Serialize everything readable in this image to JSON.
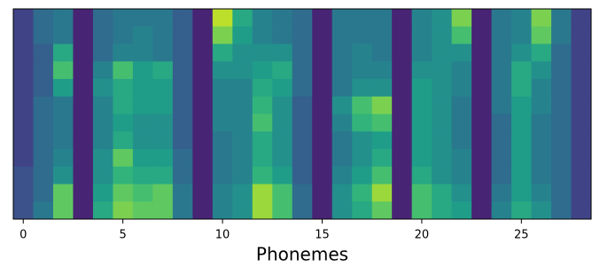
{
  "chart_data": {
    "type": "heatmap",
    "xlabel": "Phonemes",
    "colormap": "viridis",
    "zlim": [
      0,
      1
    ],
    "xlim": [
      -0.5,
      28.5
    ],
    "xticks": [
      0,
      5,
      10,
      15,
      20,
      25
    ],
    "x": [
      0,
      1,
      2,
      3,
      4,
      5,
      6,
      7,
      8,
      9,
      10,
      11,
      12,
      13,
      14,
      15,
      16,
      17,
      18,
      19,
      20,
      21,
      22,
      23,
      24,
      25,
      26,
      27,
      28
    ],
    "z": [
      [
        0.2,
        0.35,
        0.4,
        0.1,
        0.35,
        0.4,
        0.4,
        0.4,
        0.3,
        0.1,
        0.9,
        0.6,
        0.45,
        0.4,
        0.35,
        0.1,
        0.4,
        0.4,
        0.4,
        0.1,
        0.45,
        0.5,
        0.8,
        0.1,
        0.4,
        0.45,
        0.8,
        0.4,
        0.2
      ],
      [
        0.2,
        0.35,
        0.4,
        0.1,
        0.35,
        0.4,
        0.45,
        0.4,
        0.3,
        0.1,
        0.8,
        0.55,
        0.45,
        0.4,
        0.35,
        0.1,
        0.4,
        0.4,
        0.4,
        0.1,
        0.45,
        0.5,
        0.7,
        0.1,
        0.4,
        0.45,
        0.75,
        0.4,
        0.2
      ],
      [
        0.2,
        0.3,
        0.6,
        0.1,
        0.35,
        0.45,
        0.45,
        0.4,
        0.3,
        0.1,
        0.6,
        0.5,
        0.5,
        0.5,
        0.35,
        0.1,
        0.4,
        0.45,
        0.4,
        0.1,
        0.45,
        0.5,
        0.5,
        0.1,
        0.4,
        0.5,
        0.6,
        0.35,
        0.2
      ],
      [
        0.2,
        0.3,
        0.7,
        0.1,
        0.45,
        0.7,
        0.55,
        0.6,
        0.3,
        0.1,
        0.5,
        0.5,
        0.55,
        0.6,
        0.35,
        0.1,
        0.4,
        0.45,
        0.45,
        0.1,
        0.5,
        0.5,
        0.45,
        0.1,
        0.4,
        0.6,
        0.5,
        0.35,
        0.2
      ],
      [
        0.2,
        0.3,
        0.55,
        0.1,
        0.5,
        0.6,
        0.55,
        0.55,
        0.3,
        0.1,
        0.45,
        0.45,
        0.6,
        0.55,
        0.35,
        0.1,
        0.4,
        0.5,
        0.5,
        0.1,
        0.55,
        0.5,
        0.45,
        0.1,
        0.4,
        0.6,
        0.45,
        0.35,
        0.2
      ],
      [
        0.2,
        0.35,
        0.4,
        0.1,
        0.45,
        0.6,
        0.55,
        0.55,
        0.3,
        0.1,
        0.45,
        0.45,
        0.65,
        0.5,
        0.3,
        0.1,
        0.5,
        0.7,
        0.8,
        0.1,
        0.55,
        0.5,
        0.4,
        0.1,
        0.4,
        0.55,
        0.45,
        0.35,
        0.2
      ],
      [
        0.2,
        0.35,
        0.4,
        0.1,
        0.45,
        0.55,
        0.5,
        0.5,
        0.3,
        0.1,
        0.45,
        0.45,
        0.7,
        0.5,
        0.3,
        0.1,
        0.45,
        0.65,
        0.7,
        0.1,
        0.55,
        0.5,
        0.4,
        0.1,
        0.35,
        0.55,
        0.4,
        0.35,
        0.2
      ],
      [
        0.2,
        0.35,
        0.4,
        0.1,
        0.45,
        0.6,
        0.5,
        0.5,
        0.3,
        0.1,
        0.4,
        0.45,
        0.6,
        0.5,
        0.3,
        0.1,
        0.4,
        0.5,
        0.55,
        0.1,
        0.55,
        0.5,
        0.4,
        0.1,
        0.35,
        0.55,
        0.4,
        0.35,
        0.2
      ],
      [
        0.2,
        0.35,
        0.45,
        0.1,
        0.5,
        0.75,
        0.55,
        0.55,
        0.35,
        0.1,
        0.4,
        0.45,
        0.6,
        0.5,
        0.3,
        0.1,
        0.4,
        0.5,
        0.6,
        0.1,
        0.55,
        0.5,
        0.45,
        0.1,
        0.35,
        0.55,
        0.4,
        0.35,
        0.2
      ],
      [
        0.25,
        0.35,
        0.5,
        0.1,
        0.5,
        0.65,
        0.6,
        0.6,
        0.35,
        0.1,
        0.4,
        0.45,
        0.65,
        0.55,
        0.3,
        0.1,
        0.45,
        0.55,
        0.7,
        0.1,
        0.6,
        0.5,
        0.45,
        0.1,
        0.35,
        0.55,
        0.4,
        0.35,
        0.2
      ],
      [
        0.25,
        0.35,
        0.75,
        0.1,
        0.55,
        0.75,
        0.7,
        0.75,
        0.4,
        0.1,
        0.45,
        0.5,
        0.85,
        0.7,
        0.35,
        0.1,
        0.5,
        0.65,
        0.85,
        0.1,
        0.7,
        0.6,
        0.5,
        0.1,
        0.4,
        0.55,
        0.45,
        0.35,
        0.2
      ],
      [
        0.25,
        0.4,
        0.75,
        0.1,
        0.6,
        0.8,
        0.75,
        0.75,
        0.4,
        0.1,
        0.45,
        0.5,
        0.85,
        0.7,
        0.35,
        0.1,
        0.5,
        0.6,
        0.75,
        0.1,
        0.7,
        0.6,
        0.55,
        0.1,
        0.45,
        0.6,
        0.5,
        0.35,
        0.2
      ]
    ]
  }
}
